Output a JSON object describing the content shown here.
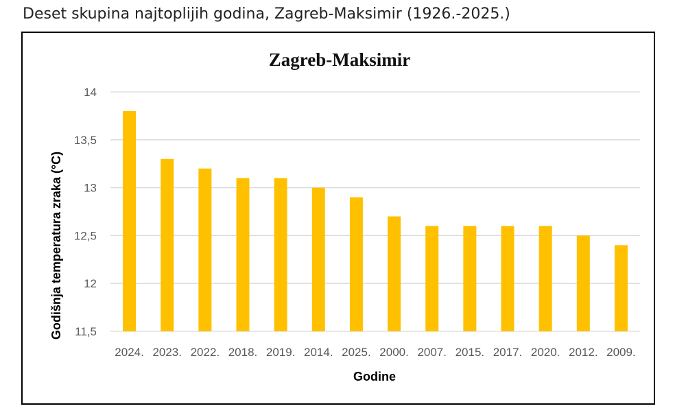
{
  "header": {
    "title": "Deset skupina najtoplijih godina, Zagreb-Maksimir (1926.-2025.)"
  },
  "colors": {
    "bar": "#FFC000",
    "grid": "#D9D9D9",
    "tick_text": "#595959"
  },
  "chart_data": {
    "type": "bar",
    "title": "Zagreb-Maksimir",
    "xlabel": "Godine",
    "ylabel": "Godišnja  temperatura zraka (°C)",
    "categories": [
      "2024.",
      "2023.",
      "2022.",
      "2018.",
      "2019.",
      "2014.",
      "2025.",
      "2000.",
      "2007.",
      "2015.",
      "2017.",
      "2020.",
      "2012.",
      "2009."
    ],
    "values": [
      13.8,
      13.3,
      13.2,
      13.1,
      13.1,
      13.0,
      12.9,
      12.7,
      12.6,
      12.6,
      12.6,
      12.6,
      12.5,
      12.4
    ],
    "ylim": [
      11.5,
      14
    ],
    "yticks": [
      11.5,
      12,
      12.5,
      13,
      13.5,
      14
    ],
    "ytick_labels": [
      "11,5",
      "12",
      "12,5",
      "13",
      "13,5",
      "14"
    ],
    "grid": true,
    "legend": "none"
  }
}
